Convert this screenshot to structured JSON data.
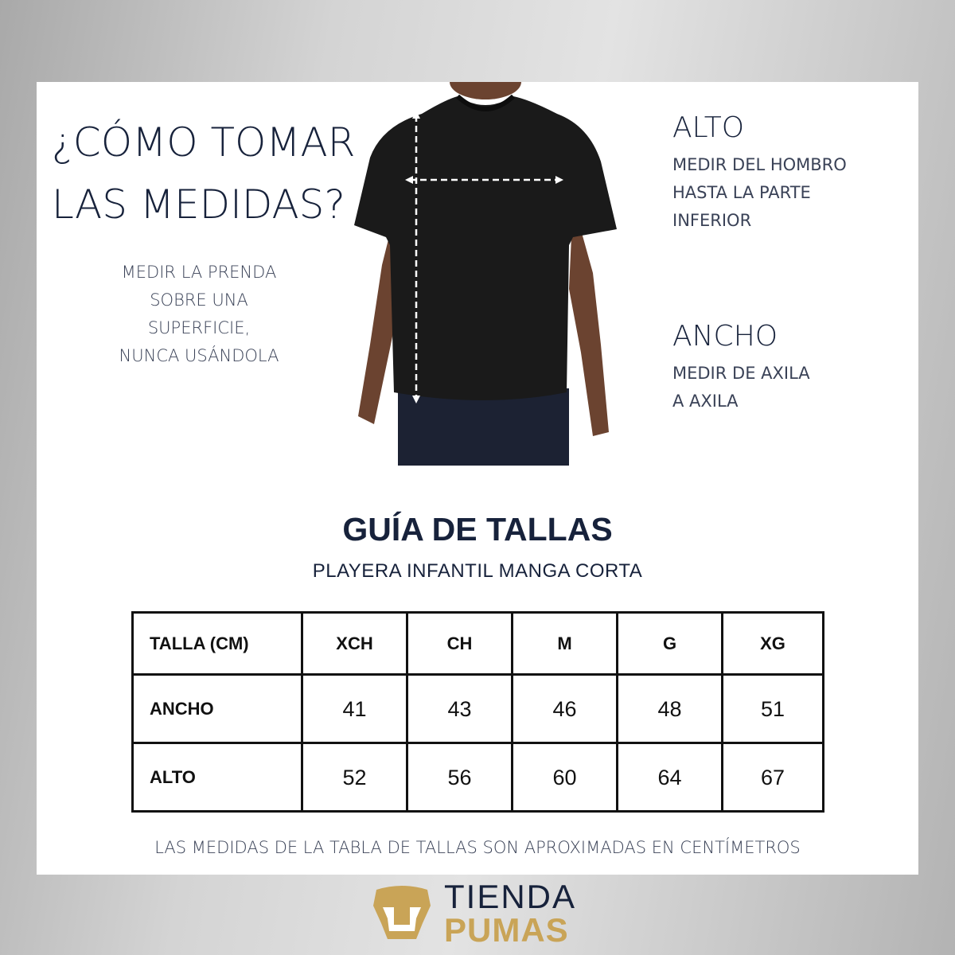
{
  "heading": {
    "line1": "¿CÓMO TOMAR",
    "line2": "LAS MEDIDAS?"
  },
  "note": [
    "MEDIR LA PRENDA",
    "SOBRE UNA",
    "SUPERFICIE,",
    "NUNCA USÁNDOLA"
  ],
  "alto": {
    "title": "ALTO",
    "lines": [
      "MEDIR DEL HOMBRO",
      "HASTA LA PARTE",
      "INFERIOR"
    ]
  },
  "ancho": {
    "title": "ANCHO",
    "lines": [
      "MEDIR DE AXILA",
      "A AXILA"
    ]
  },
  "guide": {
    "title": "GUÍA DE TALLAS",
    "subtitle": "PLAYERA INFANTIL MANGA CORTA"
  },
  "table": {
    "headers": [
      "TALLA (CM)",
      "XCH",
      "CH",
      "M",
      "G",
      "XG"
    ],
    "rows": [
      {
        "label": "ANCHO",
        "values": [
          "41",
          "43",
          "46",
          "48",
          "51"
        ]
      },
      {
        "label": "ALTO",
        "values": [
          "52",
          "56",
          "60",
          "64",
          "67"
        ]
      }
    ]
  },
  "footnote": "LAS MEDIDAS DE LA TABLA DE TALLAS SON APROXIMADAS EN CENTÍMETROS",
  "logo": {
    "line1": "TIENDA",
    "line2": "PUMAS",
    "gold": "#c9a457",
    "navy": "#17223b"
  }
}
